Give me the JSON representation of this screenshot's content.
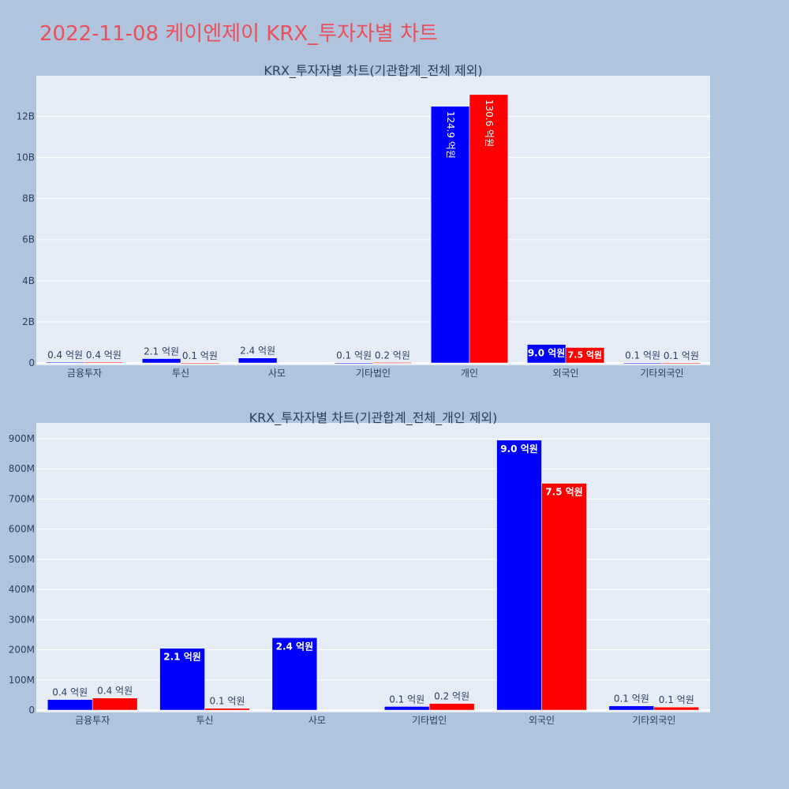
{
  "page": {
    "title": "2022-11-08 케이엔제이 KRX_투자자별 차트"
  },
  "colors": {
    "background": "#b0c4de",
    "plot_bg": "#e5ecf6",
    "buy": "#0000ff",
    "sell": "#ff0000",
    "title": "#e8505b",
    "text": "#2a3f5f"
  },
  "chart_data": [
    {
      "type": "bar",
      "title": "KRX_투자자별 차트(기관합계_전체 제외)",
      "categories": [
        "금융투자",
        "투신",
        "사모",
        "기타법인",
        "개인",
        "외국인",
        "기타외국인"
      ],
      "series": [
        {
          "color": "#0000ff",
          "values": [
            35000000,
            210000000,
            240000000,
            10000000,
            12490000000,
            900000000,
            10000000
          ],
          "labels": [
            "0.4 억원",
            "2.1 억원",
            "2.4 억원",
            "0.1 억원",
            "124.9 억원",
            "9.0 억원",
            "0.1 억원"
          ]
        },
        {
          "color": "#ff0000",
          "values": [
            40000000,
            8000000,
            0,
            22000000,
            13060000000,
            750000000,
            8000000
          ],
          "labels": [
            "0.4 억원",
            "0.1 억원",
            "",
            "0.2 억원",
            "130.6 억원",
            "7.5 억원",
            "0.1 억원"
          ]
        }
      ],
      "y_ticks": [
        0,
        2000000000,
        4000000000,
        6000000000,
        8000000000,
        10000000000,
        12000000000
      ],
      "y_tick_labels": [
        "0",
        "2B",
        "4B",
        "6B",
        "8B",
        "10B",
        "12B"
      ],
      "ylim": [
        0,
        13900000000
      ],
      "grid": true
    },
    {
      "type": "bar",
      "title": "KRX_투자자별 차트(기관합계_전체_개인 제외)",
      "categories": [
        "금융투자",
        "투신",
        "사모",
        "기타법인",
        "외국인",
        "기타외국인"
      ],
      "series": [
        {
          "color": "#0000ff",
          "values": [
            35000000,
            205000000,
            240000000,
            12000000,
            895000000,
            14000000
          ],
          "labels": [
            "0.4 억원",
            "2.1 억원",
            "2.4 억원",
            "0.1 억원",
            "9.0 억원",
            "0.1 억원"
          ]
        },
        {
          "color": "#ff0000",
          "values": [
            40000000,
            6000000,
            0,
            22000000,
            752000000,
            10000000
          ],
          "labels": [
            "0.4 억원",
            "0.1 억원",
            "",
            "0.2 억원",
            "7.5 억원",
            "0.1 억원"
          ]
        }
      ],
      "y_ticks": [
        0,
        100000000,
        200000000,
        300000000,
        400000000,
        500000000,
        600000000,
        700000000,
        800000000,
        900000000
      ],
      "y_tick_labels": [
        "0",
        "100M",
        "200M",
        "300M",
        "400M",
        "500M",
        "600M",
        "700M",
        "800M",
        "900M"
      ],
      "ylim": [
        0,
        947000000
      ],
      "grid": true
    }
  ]
}
